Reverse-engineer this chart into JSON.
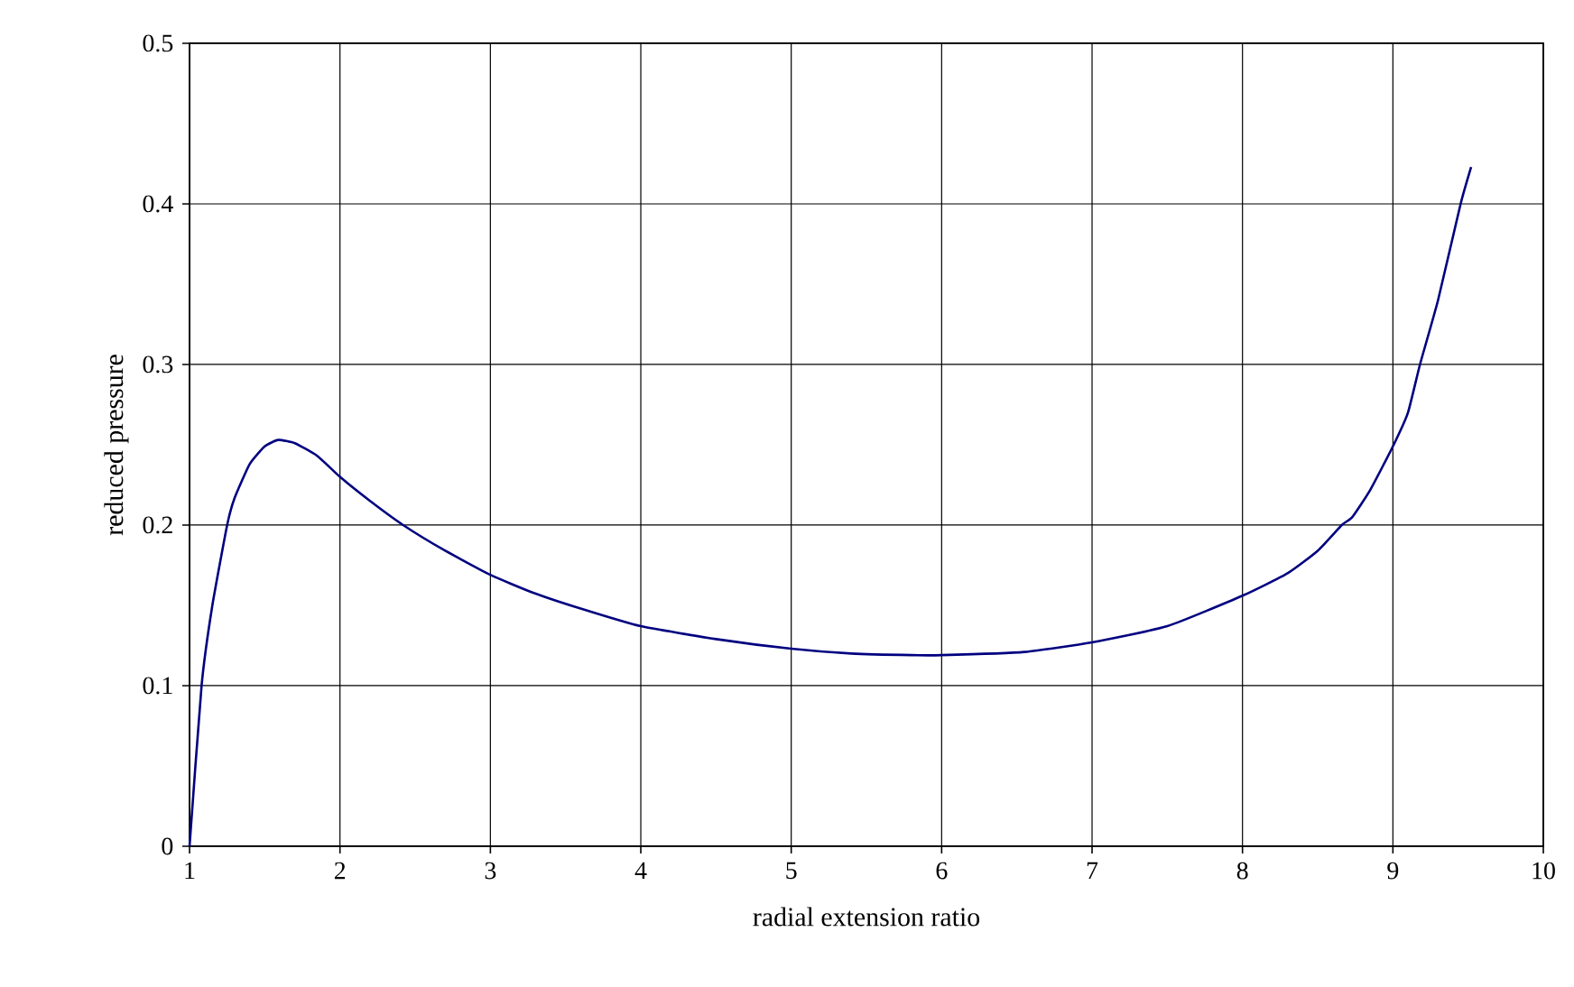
{
  "chart_data": {
    "type": "line",
    "xlabel": "radial extension ratio",
    "ylabel": "reduced pressure",
    "xlim": [
      1,
      10
    ],
    "xticks": [
      1,
      2,
      3,
      4,
      5,
      6,
      7,
      8,
      9,
      10
    ],
    "ylim": [
      0,
      0.5
    ],
    "yticks": [
      0,
      0.1,
      0.2,
      0.3,
      0.4,
      0.5
    ],
    "grid": true,
    "marker": "none",
    "line_style": "solid",
    "series": [
      {
        "color": "#000080",
        "x": [
          1,
          1.08,
          1.15,
          1.25,
          1.3,
          1.4,
          1.5,
          1.59,
          1.7,
          1.85,
          2,
          2.2,
          2.42,
          2.7,
          3,
          3.28,
          3.6,
          4,
          4.5,
          5,
          5.4,
          5.8,
          6,
          6.55,
          7,
          7.5,
          8,
          8.3,
          8.5,
          8.66,
          8.73,
          8.85,
          9,
          9.1,
          9.18,
          9.3,
          9.45,
          9.52
        ],
        "values": [
          0,
          0.1,
          0.149,
          0.2,
          0.217,
          0.238,
          0.249,
          0.253,
          0.251,
          0.243,
          0.23,
          0.215,
          0.2,
          0.184,
          0.169,
          0.158,
          0.148,
          0.137,
          0.129,
          0.123,
          0.12,
          0.119,
          0.119,
          0.121,
          0.127,
          0.137,
          0.156,
          0.17,
          0.184,
          0.2,
          0.205,
          0.222,
          0.249,
          0.27,
          0.3,
          0.34,
          0.4,
          0.423
        ]
      }
    ]
  }
}
